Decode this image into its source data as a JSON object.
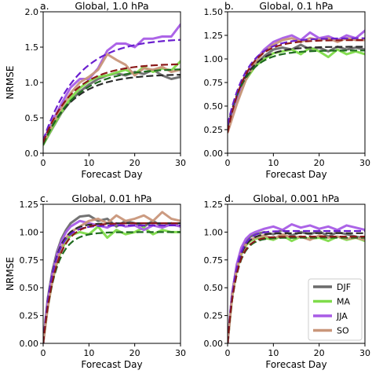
{
  "colors": {
    "DJF": "#6b6b6b",
    "MA": "#7fdc4a",
    "JJA": "#a85ce6",
    "SO": "#c9967a",
    "fit_DJF": "#2b2b2b",
    "fit_MA": "#1f6b1f",
    "fit_JJA": "#6a1fcf",
    "fit_SO": "#8b1a1a"
  },
  "legend": {
    "placement": "lower-right of panel d",
    "entries": [
      {
        "key": "DJF",
        "label": "DJF"
      },
      {
        "key": "MA",
        "label": "MA"
      },
      {
        "key": "JJA",
        "label": "JJA"
      },
      {
        "key": "SO",
        "label": "SO"
      }
    ]
  },
  "chart_data": [
    {
      "type": "line",
      "panel": "a.",
      "title": "Global, 1.0 hPa",
      "xlabel": "Forecast Day",
      "ylabel": "NRMSE",
      "xlim": [
        0,
        30
      ],
      "ylim": [
        0,
        2.0
      ],
      "xticks": [
        0,
        10,
        20,
        30
      ],
      "xtick_labels": [
        "0",
        "10",
        "20",
        "30"
      ],
      "yticks": [
        0,
        0.5,
        1.0,
        1.5,
        2.0
      ],
      "ytick_labels": [
        "0.0",
        "0.5",
        "1.0",
        "1.5",
        "2.0"
      ],
      "series": [
        {
          "name": "DJF",
          "fit": {
            "a": 1.12,
            "y0": 0.12,
            "tau": 6.5
          },
          "x": [
            0,
            2,
            4,
            6,
            8,
            10,
            12,
            14,
            16,
            18,
            20,
            22,
            24,
            26,
            28,
            30
          ],
          "y": [
            0.12,
            0.35,
            0.57,
            0.74,
            0.87,
            0.97,
            1.05,
            1.1,
            1.13,
            1.1,
            1.15,
            1.12,
            1.18,
            1.1,
            1.05,
            1.08
          ]
        },
        {
          "name": "MA",
          "fit": {
            "a": 1.2,
            "y0": 0.12,
            "tau": 7.0
          },
          "x": [
            0,
            2,
            4,
            6,
            8,
            10,
            12,
            14,
            16,
            18,
            20,
            22,
            24,
            26,
            28,
            30
          ],
          "y": [
            0.12,
            0.36,
            0.58,
            0.78,
            0.92,
            1.02,
            1.08,
            1.1,
            1.14,
            1.18,
            1.12,
            1.22,
            1.15,
            1.2,
            1.17,
            1.3
          ]
        },
        {
          "name": "JJA",
          "fit": {
            "a": 1.63,
            "y0": 0.18,
            "tau": 7.5
          },
          "x": [
            0,
            2,
            4,
            6,
            8,
            10,
            12,
            14,
            16,
            18,
            20,
            22,
            24,
            26,
            28,
            30
          ],
          "y": [
            0.18,
            0.45,
            0.7,
            0.93,
            1.05,
            1.05,
            1.2,
            1.45,
            1.55,
            1.55,
            1.5,
            1.62,
            1.62,
            1.65,
            1.65,
            1.82
          ]
        },
        {
          "name": "SO",
          "fit": {
            "a": 1.27,
            "y0": 0.15,
            "tau": 6.5
          },
          "x": [
            0,
            2,
            4,
            6,
            8,
            10,
            12,
            14,
            16,
            18,
            20,
            22,
            24,
            26,
            28,
            30
          ],
          "y": [
            0.15,
            0.4,
            0.64,
            0.85,
            1.0,
            1.08,
            1.18,
            1.4,
            1.32,
            1.25,
            1.1,
            1.2,
            1.18,
            1.22,
            1.15,
            1.18
          ]
        }
      ]
    },
    {
      "type": "line",
      "panel": "b.",
      "title": "Global, 0.1 hPa",
      "xlabel": "Forecast Day",
      "ylabel": "",
      "xlim": [
        0,
        30
      ],
      "ylim": [
        0,
        1.5
      ],
      "xticks": [
        0,
        10,
        20,
        30
      ],
      "xtick_labels": [
        "0",
        "10",
        "20",
        "30"
      ],
      "yticks": [
        0,
        0.25,
        0.5,
        0.75,
        1.0,
        1.25,
        1.5
      ],
      "ytick_labels": [
        "0.00",
        "0.25",
        "0.50",
        "0.75",
        "1.00",
        "1.25",
        "1.50"
      ],
      "series": [
        {
          "name": "DJF",
          "fit": {
            "a": 1.13,
            "y0": 0.28,
            "tau": 4.0
          },
          "x": [
            0,
            2,
            4,
            6,
            8,
            10,
            12,
            14,
            16,
            18,
            20,
            22,
            24,
            26,
            28,
            30
          ],
          "y": [
            0.28,
            0.55,
            0.78,
            0.93,
            1.03,
            1.1,
            1.12,
            1.1,
            1.15,
            1.1,
            1.12,
            1.08,
            1.13,
            1.1,
            1.12,
            1.1
          ]
        },
        {
          "name": "MA",
          "fit": {
            "a": 1.09,
            "y0": 0.3,
            "tau": 4.0
          },
          "x": [
            0,
            2,
            4,
            6,
            8,
            10,
            12,
            14,
            16,
            18,
            20,
            22,
            24,
            26,
            28,
            30
          ],
          "y": [
            0.3,
            0.56,
            0.78,
            0.92,
            1.0,
            1.06,
            1.08,
            1.1,
            1.05,
            1.12,
            1.08,
            1.02,
            1.1,
            1.05,
            1.08,
            1.05
          ]
        },
        {
          "name": "JJA",
          "fit": {
            "a": 1.22,
            "y0": 0.3,
            "tau": 4.2
          },
          "x": [
            0,
            2,
            4,
            6,
            8,
            10,
            12,
            14,
            16,
            18,
            20,
            22,
            24,
            26,
            28,
            30
          ],
          "y": [
            0.3,
            0.58,
            0.82,
            0.98,
            1.1,
            1.18,
            1.22,
            1.25,
            1.2,
            1.28,
            1.22,
            1.24,
            1.2,
            1.25,
            1.22,
            1.3
          ]
        },
        {
          "name": "SO",
          "fit": {
            "a": 1.2,
            "y0": 0.22,
            "tau": 4.0
          },
          "x": [
            0,
            2,
            4,
            6,
            8,
            10,
            12,
            14,
            16,
            18,
            20,
            22,
            24,
            26,
            28,
            30
          ],
          "y": [
            0.22,
            0.52,
            0.78,
            0.96,
            1.08,
            1.15,
            1.2,
            1.22,
            1.18,
            1.22,
            1.2,
            1.22,
            1.18,
            1.22,
            1.2,
            1.2
          ]
        }
      ]
    },
    {
      "type": "line",
      "panel": "c.",
      "title": "Global, 0.01 hPa",
      "xlabel": "Forecast Day",
      "ylabel": "NRMSE",
      "xlim": [
        0,
        30
      ],
      "ylim": [
        0,
        1.25
      ],
      "xticks": [
        0,
        10,
        20,
        30
      ],
      "xtick_labels": [
        "0",
        "10",
        "20",
        "30"
      ],
      "yticks": [
        0,
        0.25,
        0.5,
        0.75,
        1.0,
        1.25
      ],
      "ytick_labels": [
        "0.00",
        "0.25",
        "0.50",
        "0.75",
        "1.00",
        "1.25"
      ],
      "series": [
        {
          "name": "DJF",
          "fit": {
            "a": 1.08,
            "y0": 0.0,
            "tau": 2.3
          },
          "x": [
            0,
            1,
            2,
            3,
            4,
            5,
            6,
            8,
            10,
            12,
            14,
            16,
            18,
            20,
            22,
            24,
            26,
            28,
            30
          ],
          "y": [
            0.0,
            0.4,
            0.65,
            0.82,
            0.94,
            1.02,
            1.08,
            1.14,
            1.15,
            1.1,
            1.12,
            1.05,
            1.1,
            1.08,
            1.05,
            1.1,
            1.05,
            1.08,
            1.05
          ]
        },
        {
          "name": "MA",
          "fit": {
            "a": 1.0,
            "y0": 0.0,
            "tau": 2.6
          },
          "x": [
            0,
            1,
            2,
            3,
            4,
            5,
            6,
            8,
            10,
            12,
            14,
            16,
            18,
            20,
            22,
            24,
            26,
            28,
            30
          ],
          "y": [
            0.0,
            0.33,
            0.56,
            0.72,
            0.84,
            0.92,
            0.97,
            1.0,
            0.98,
            1.05,
            0.95,
            1.02,
            0.98,
            1.0,
            1.04,
            0.98,
            1.02,
            1.0,
            1.0
          ]
        },
        {
          "name": "JJA",
          "fit": {
            "a": 1.06,
            "y0": 0.0,
            "tau": 2.3
          },
          "x": [
            0,
            1,
            2,
            3,
            4,
            5,
            6,
            8,
            10,
            12,
            14,
            16,
            18,
            20,
            22,
            24,
            26,
            28,
            30
          ],
          "y": [
            0.0,
            0.38,
            0.63,
            0.8,
            0.92,
            1.0,
            1.05,
            1.1,
            1.08,
            1.06,
            1.04,
            1.08,
            1.05,
            1.06,
            1.02,
            1.06,
            1.04,
            1.07,
            1.05
          ]
        },
        {
          "name": "SO",
          "fit": {
            "a": 1.08,
            "y0": 0.0,
            "tau": 2.8
          },
          "x": [
            0,
            1,
            2,
            3,
            4,
            5,
            6,
            8,
            10,
            12,
            14,
            16,
            18,
            20,
            22,
            24,
            26,
            28,
            30
          ],
          "y": [
            0.0,
            0.32,
            0.56,
            0.74,
            0.86,
            0.95,
            1.0,
            1.05,
            1.1,
            1.12,
            1.08,
            1.15,
            1.1,
            1.12,
            1.15,
            1.1,
            1.18,
            1.12,
            1.1
          ]
        }
      ]
    },
    {
      "type": "line",
      "panel": "d.",
      "title": "Global, 0.001 hPa",
      "xlabel": "Forecast Day",
      "ylabel": "",
      "xlim": [
        0,
        30
      ],
      "ylim": [
        0,
        1.25
      ],
      "xticks": [
        0,
        10,
        20,
        30
      ],
      "xtick_labels": [
        "0",
        "10",
        "20",
        "30"
      ],
      "yticks": [
        0,
        0.25,
        0.5,
        0.75,
        1.0,
        1.25
      ],
      "ytick_labels": [
        "0.00",
        "0.25",
        "0.50",
        "0.75",
        "1.00",
        "1.25"
      ],
      "series": [
        {
          "name": "DJF",
          "fit": {
            "a": 0.99,
            "y0": 0.0,
            "tau": 1.8
          },
          "x": [
            0,
            1,
            2,
            3,
            4,
            5,
            6,
            8,
            10,
            12,
            14,
            16,
            18,
            20,
            22,
            24,
            26,
            28,
            30
          ],
          "y": [
            0.0,
            0.45,
            0.7,
            0.84,
            0.92,
            0.96,
            0.98,
            1.0,
            0.98,
            1.02,
            0.97,
            1.0,
            0.98,
            1.01,
            0.96,
            1.0,
            0.98,
            0.96,
            0.94
          ]
        },
        {
          "name": "MA",
          "fit": {
            "a": 0.95,
            "y0": 0.0,
            "tau": 1.9
          },
          "x": [
            0,
            1,
            2,
            3,
            4,
            5,
            6,
            8,
            10,
            12,
            14,
            16,
            18,
            20,
            22,
            24,
            26,
            28,
            30
          ],
          "y": [
            0.0,
            0.42,
            0.66,
            0.8,
            0.88,
            0.92,
            0.94,
            0.95,
            0.93,
            0.97,
            0.92,
            0.96,
            0.94,
            0.95,
            0.92,
            0.96,
            0.93,
            0.95,
            0.92
          ]
        },
        {
          "name": "JJA",
          "fit": {
            "a": 1.01,
            "y0": 0.0,
            "tau": 1.8
          },
          "x": [
            0,
            1,
            2,
            3,
            4,
            5,
            6,
            8,
            10,
            12,
            14,
            16,
            18,
            20,
            22,
            24,
            26,
            28,
            30
          ],
          "y": [
            0.0,
            0.45,
            0.71,
            0.86,
            0.94,
            0.98,
            1.0,
            1.03,
            1.05,
            1.02,
            1.07,
            1.04,
            1.06,
            1.03,
            1.05,
            1.02,
            1.06,
            1.04,
            1.02
          ]
        },
        {
          "name": "SO",
          "fit": {
            "a": 0.96,
            "y0": 0.0,
            "tau": 1.9
          },
          "x": [
            0,
            1,
            2,
            3,
            4,
            5,
            6,
            8,
            10,
            12,
            14,
            16,
            18,
            20,
            22,
            24,
            26,
            28,
            30
          ],
          "y": [
            0.0,
            0.43,
            0.67,
            0.81,
            0.89,
            0.93,
            0.95,
            0.97,
            0.94,
            0.98,
            0.95,
            0.96,
            0.93,
            0.97,
            0.95,
            0.96,
            0.94,
            0.95,
            0.93
          ]
        }
      ]
    }
  ]
}
